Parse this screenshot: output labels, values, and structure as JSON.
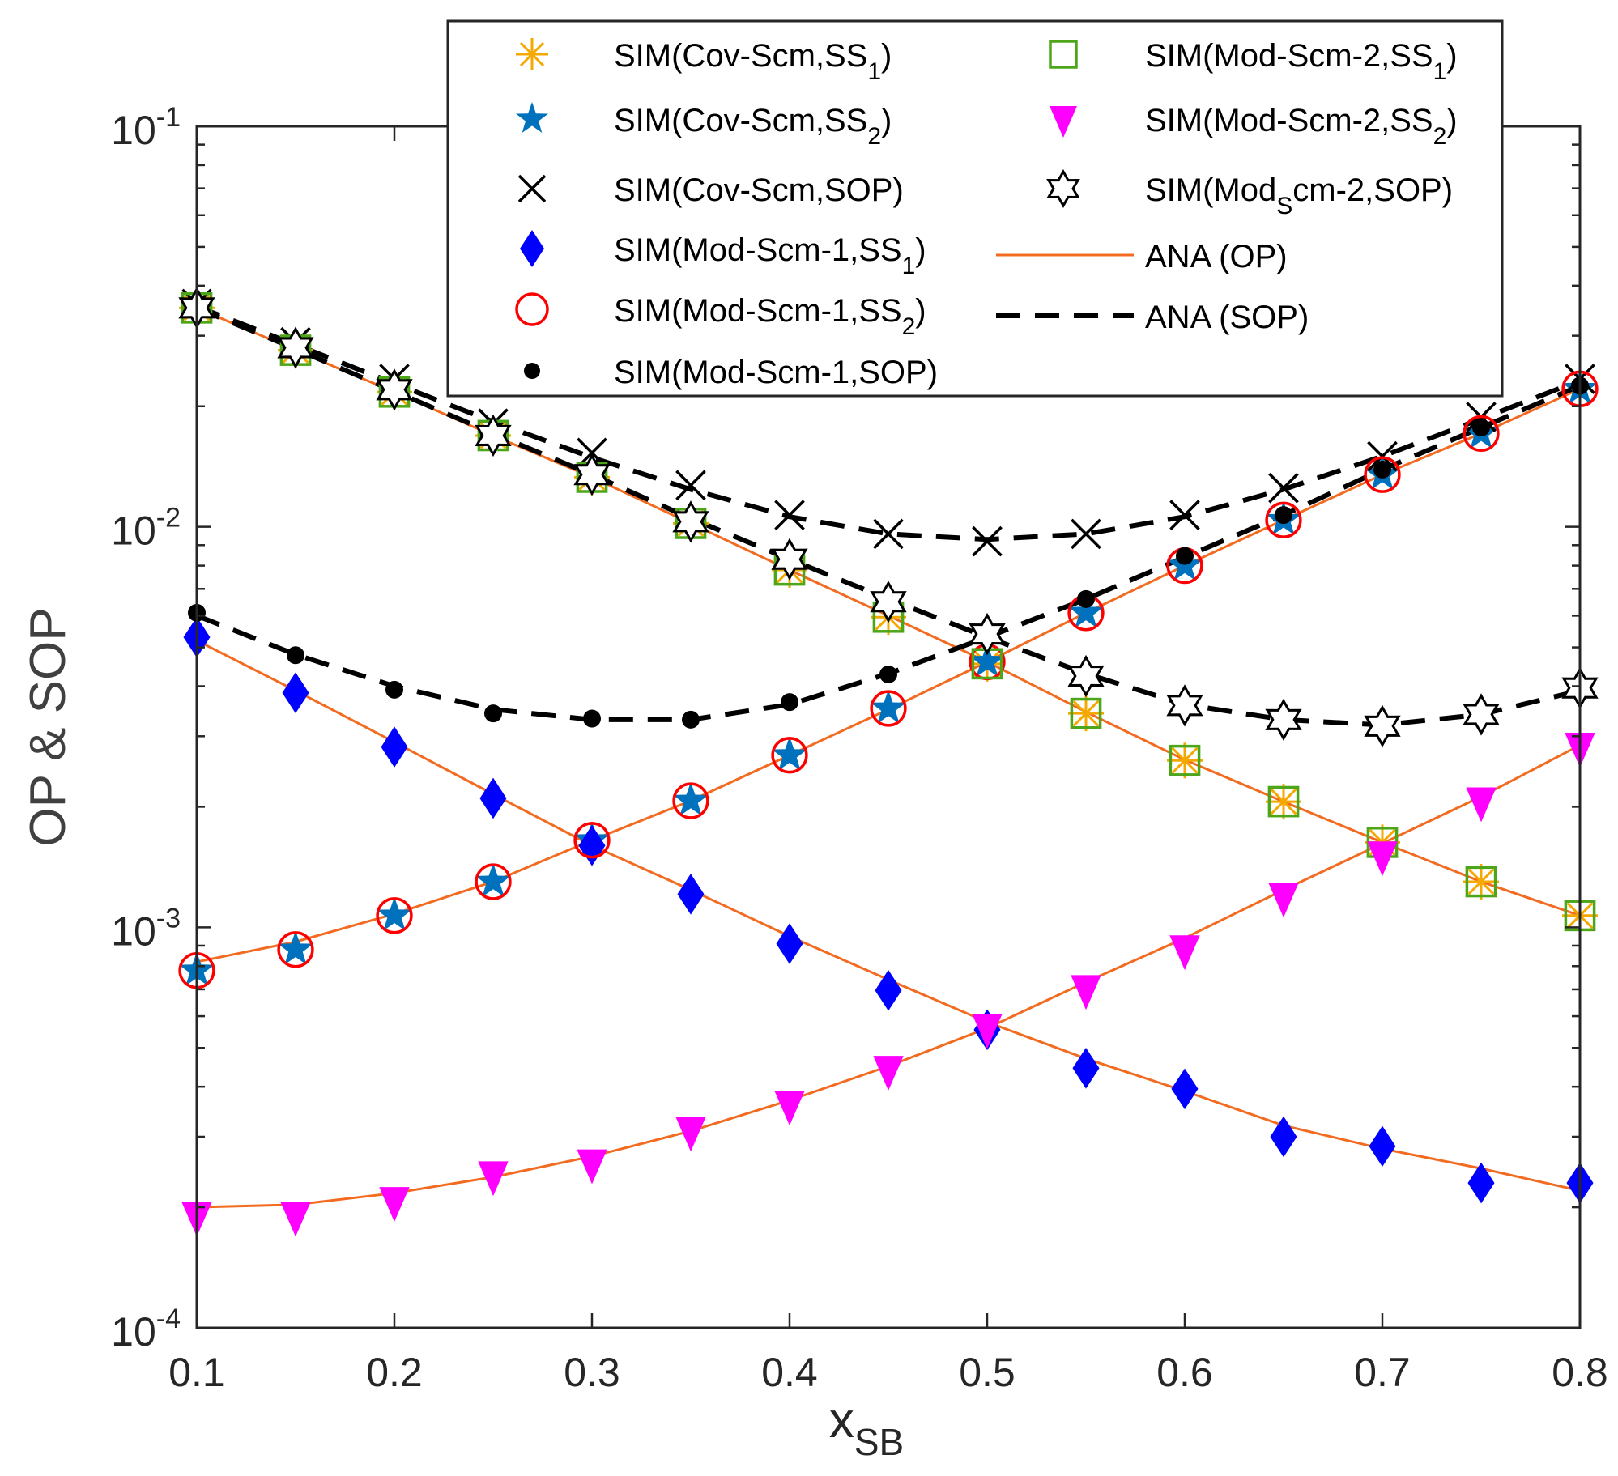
{
  "chart_data": {
    "type": "line",
    "xlabel": {
      "main": "x",
      "sub": "SB"
    },
    "ylabel": "OP & SOP",
    "xlim": [
      0.1,
      0.8
    ],
    "ylim": [
      0.0001,
      0.1
    ],
    "yscale": "log",
    "grid": false,
    "legend_placement": "top-center",
    "x_ticks": [
      "0.1",
      "0.2",
      "0.3",
      "0.4",
      "0.5",
      "0.6",
      "0.7",
      "0.8"
    ],
    "y_ticks": [
      {
        "base": "10",
        "exp": "-4"
      },
      {
        "base": "10",
        "exp": "-3"
      },
      {
        "base": "10",
        "exp": "-2"
      },
      {
        "base": "10",
        "exp": "-1"
      }
    ],
    "x": [
      0.1,
      0.15,
      0.2,
      0.25,
      0.3,
      0.35,
      0.4,
      0.45,
      0.5,
      0.55,
      0.6,
      0.65,
      0.7,
      0.75,
      0.8
    ],
    "colors": {
      "orange_marker": "#F5A900",
      "star": "#0072BD",
      "diamond": "#0000FF",
      "circle": "#FF0000",
      "square": "#4DA619",
      "triangle": "#FF00FF",
      "ana_op": "#F26B21",
      "black": "#000000"
    },
    "series": [
      {
        "name": {
          "main": "SIM(Cov-Scm,SS",
          "sub": "1",
          "tail": ")"
        },
        "marker": "asterisk",
        "color": "#F5A900",
        "values": [
          0.0352,
          0.0276,
          0.0217,
          0.0169,
          0.0133,
          0.0102,
          0.0078,
          0.00595,
          0.00455,
          0.00342,
          0.00261,
          0.00206,
          0.00163,
          0.0013,
          0.00107
        ]
      },
      {
        "name": {
          "main": "SIM(Cov-Scm,SS",
          "sub": "2",
          "tail": ")"
        },
        "marker": "star",
        "color": "#0072BD",
        "values": [
          0.00078,
          0.00088,
          0.00107,
          0.0013,
          0.00165,
          0.00207,
          0.00269,
          0.00352,
          0.0046,
          0.0061,
          0.008,
          0.0104,
          0.0135,
          0.0171,
          0.0221
        ]
      },
      {
        "name": {
          "main": "SIM(Cov-Scm,SOP)",
          "sub": "",
          "tail": ""
        },
        "marker": "x",
        "color": "#000000",
        "values": [
          0.036,
          0.0289,
          0.0234,
          0.0181,
          0.0153,
          0.0127,
          0.0107,
          0.0096,
          0.0092,
          0.0096,
          0.0107,
          0.0125,
          0.015,
          0.0188,
          0.0234
        ]
      },
      {
        "name": {
          "main": "SIM(Mod-Scm-1,SS",
          "sub": "1",
          "tail": ")"
        },
        "marker": "diamond",
        "color": "#0000FF",
        "values": [
          0.0053,
          0.00385,
          0.00282,
          0.0021,
          0.0016,
          0.00121,
          0.00091,
          0.000696,
          0.000555,
          0.000445,
          0.000395,
          0.0003,
          0.000284,
          0.00023,
          0.00023
        ]
      },
      {
        "name": {
          "main": "SIM(Mod-Scm-1,SS",
          "sub": "2",
          "tail": ")"
        },
        "marker": "circle",
        "color": "#FF0000",
        "values": [
          0.00078,
          0.00088,
          0.00107,
          0.0013,
          0.00165,
          0.00207,
          0.00269,
          0.00352,
          0.0046,
          0.0061,
          0.008,
          0.0104,
          0.0135,
          0.0171,
          0.0221
        ]
      },
      {
        "name": {
          "main": "SIM(Mod-Scm-1,SOP)",
          "sub": "",
          "tail": ""
        },
        "marker": "dot",
        "color": "#000000",
        "values": [
          0.0061,
          0.00478,
          0.00392,
          0.00342,
          0.00332,
          0.0033,
          0.00365,
          0.00428,
          0.00538,
          0.0066,
          0.00846,
          0.0107,
          0.0139,
          0.0177,
          0.0225
        ]
      },
      {
        "name": {
          "main": "SIM(Mod-Scm-2,SS",
          "sub": "1",
          "tail": ")"
        },
        "marker": "square",
        "color": "#4DA619",
        "values": [
          0.0352,
          0.0276,
          0.0217,
          0.0169,
          0.0133,
          0.0102,
          0.0078,
          0.00595,
          0.00455,
          0.00342,
          0.00261,
          0.00206,
          0.00163,
          0.0013,
          0.00107
        ]
      },
      {
        "name": {
          "main": "SIM(Mod-Scm-2,SS",
          "sub": "2",
          "tail": ")"
        },
        "marker": "triangle",
        "color": "#FF00FF",
        "values": [
          0.00019,
          0.00019,
          0.000207,
          0.00024,
          0.000257,
          0.00031,
          0.00036,
          0.00044,
          0.00056,
          0.0007,
          0.00088,
          0.00119,
          0.00151,
          0.00206,
          0.00282
        ]
      },
      {
        "name": {
          "main": "SIM(Mod",
          "sub": "S",
          "tail": "cm-2,SOP)"
        },
        "marker": "hexagram",
        "color": "#000000",
        "values": [
          0.0352,
          0.028,
          0.022,
          0.0169,
          0.0135,
          0.0103,
          0.0083,
          0.0065,
          0.0054,
          0.00424,
          0.00358,
          0.0033,
          0.00318,
          0.0034,
          0.00396
        ]
      },
      {
        "name": {
          "main": "ANA (OP)",
          "sub": "",
          "tail": ""
        },
        "style": "solid",
        "color": "#F26B21",
        "curves": [
          [
            0.0352,
            0.0276,
            0.0217,
            0.0169,
            0.0133,
            0.0102,
            0.0078,
            0.006,
            0.0046,
            0.00345,
            0.00262,
            0.00206,
            0.00163,
            0.0013,
            0.00107
          ],
          [
            0.00082,
            0.00092,
            0.00108,
            0.0013,
            0.00165,
            0.00207,
            0.00269,
            0.0035,
            0.0046,
            0.0061,
            0.008,
            0.0104,
            0.0135,
            0.0171,
            0.0221
          ],
          [
            0.0052,
            0.0039,
            0.0029,
            0.00215,
            0.0016,
            0.00124,
            0.00095,
            0.00074,
            0.00058,
            0.00047,
            0.00039,
            0.00032,
            0.00028,
            0.00025,
            0.00022
          ],
          [
            0.0002,
            0.000203,
            0.000217,
            0.000238,
            0.000268,
            0.00031,
            0.00037,
            0.00045,
            0.00056,
            0.00073,
            0.00094,
            0.00124,
            0.00162,
            0.00212,
            0.00285
          ]
        ]
      },
      {
        "name": {
          "main": "ANA (SOP)",
          "sub": "",
          "tail": ""
        },
        "style": "dashed",
        "color": "#000000",
        "curves": [
          [
            0.0355,
            0.0285,
            0.0228,
            0.0183,
            0.0149,
            0.0124,
            0.0106,
            0.0096,
            0.0093,
            0.0096,
            0.0106,
            0.0124,
            0.015,
            0.0186,
            0.0232
          ],
          [
            0.006,
            0.0048,
            0.004,
            0.0035,
            0.0033,
            0.0033,
            0.0036,
            0.0043,
            0.0053,
            0.0066,
            0.0084,
            0.0107,
            0.0139,
            0.0177,
            0.0225
          ],
          [
            0.0352,
            0.0278,
            0.0218,
            0.0171,
            0.0135,
            0.0105,
            0.0083,
            0.0066,
            0.0053,
            0.0043,
            0.0036,
            0.0033,
            0.0032,
            0.0034,
            0.0039
          ]
        ]
      }
    ]
  }
}
